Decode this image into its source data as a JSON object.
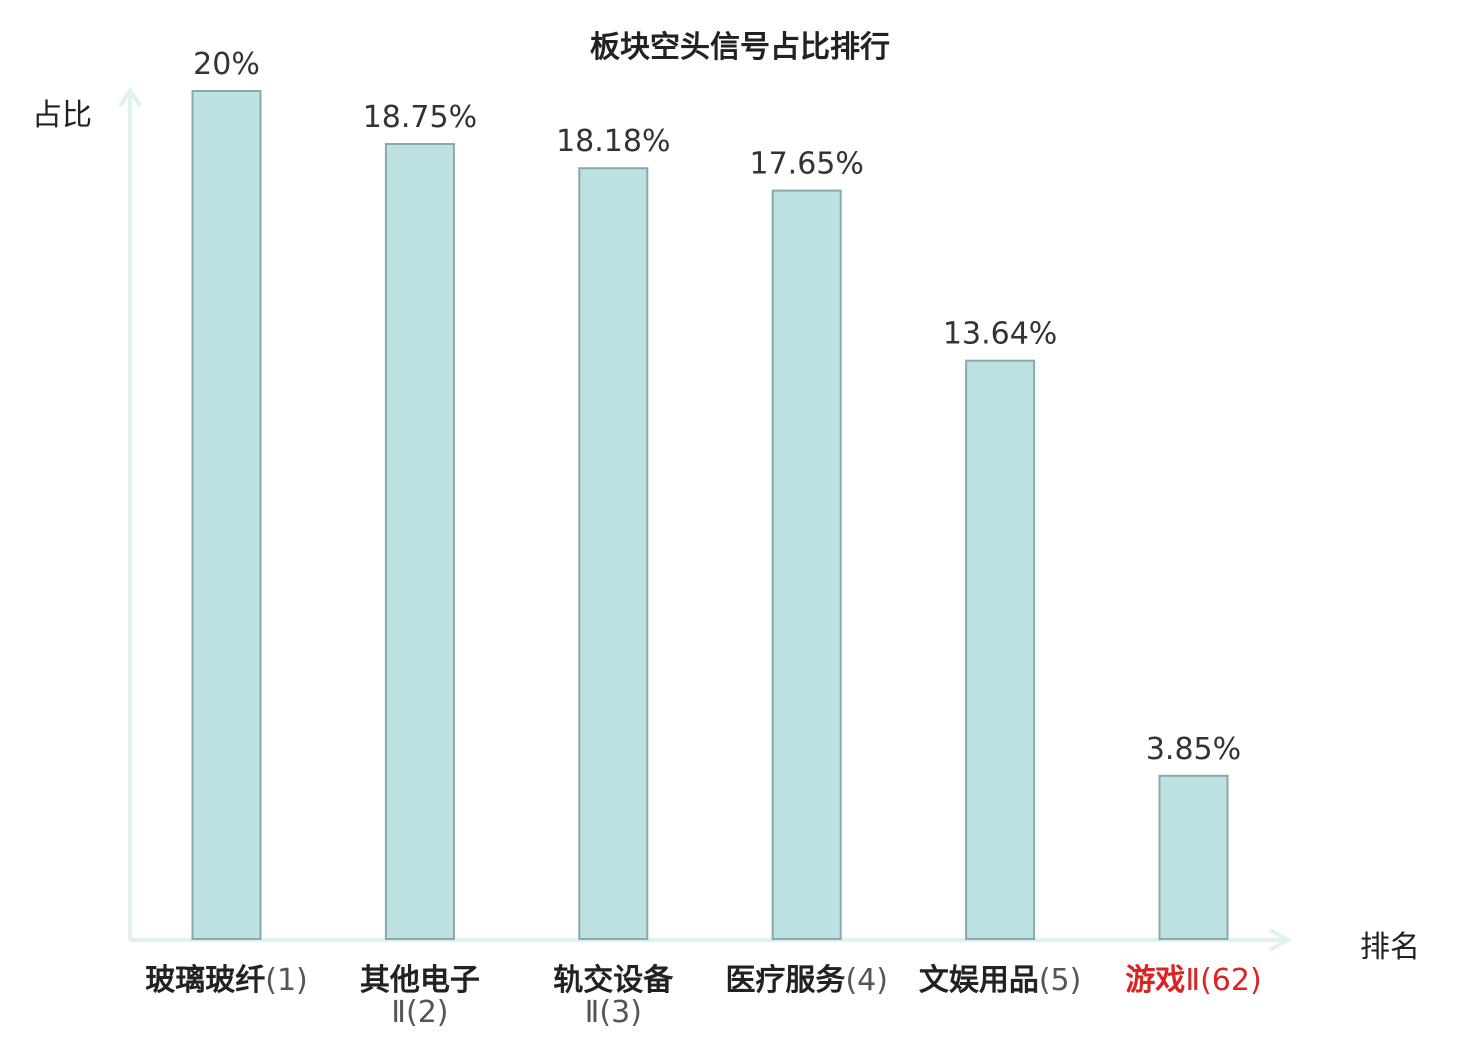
{
  "chart_data": {
    "type": "bar",
    "title": "板块空头信号占比排行",
    "ylabel": "占比",
    "xlabel": "排名",
    "ylim": [
      0,
      20
    ],
    "categories": [
      {
        "name": "玻璃玻纤",
        "rank": "(1)",
        "highlight": false
      },
      {
        "name": "其他电子",
        "rank": "Ⅱ(2)",
        "highlight": false
      },
      {
        "name": "轨交设备",
        "rank": "Ⅱ(3)",
        "highlight": false
      },
      {
        "name": "医疗服务",
        "rank": "(4)",
        "highlight": false
      },
      {
        "name": "文娱用品",
        "rank": "(5)",
        "highlight": false
      },
      {
        "name": "游戏",
        "rank": "Ⅱ(62)",
        "highlight": true
      }
    ],
    "values": [
      20,
      18.75,
      18.18,
      17.65,
      13.64,
      3.85
    ],
    "value_labels": [
      "20%",
      "18.75%",
      "18.18%",
      "17.65%",
      "13.64%",
      "3.85%"
    ],
    "grid": false,
    "colors": {
      "bar_fill": "#bde0e2",
      "bar_stroke": "#8aa9ab",
      "axis": "#dff2ef",
      "text": "#222222",
      "highlight_text": "#dd2222",
      "rank_text": "#555555"
    }
  }
}
